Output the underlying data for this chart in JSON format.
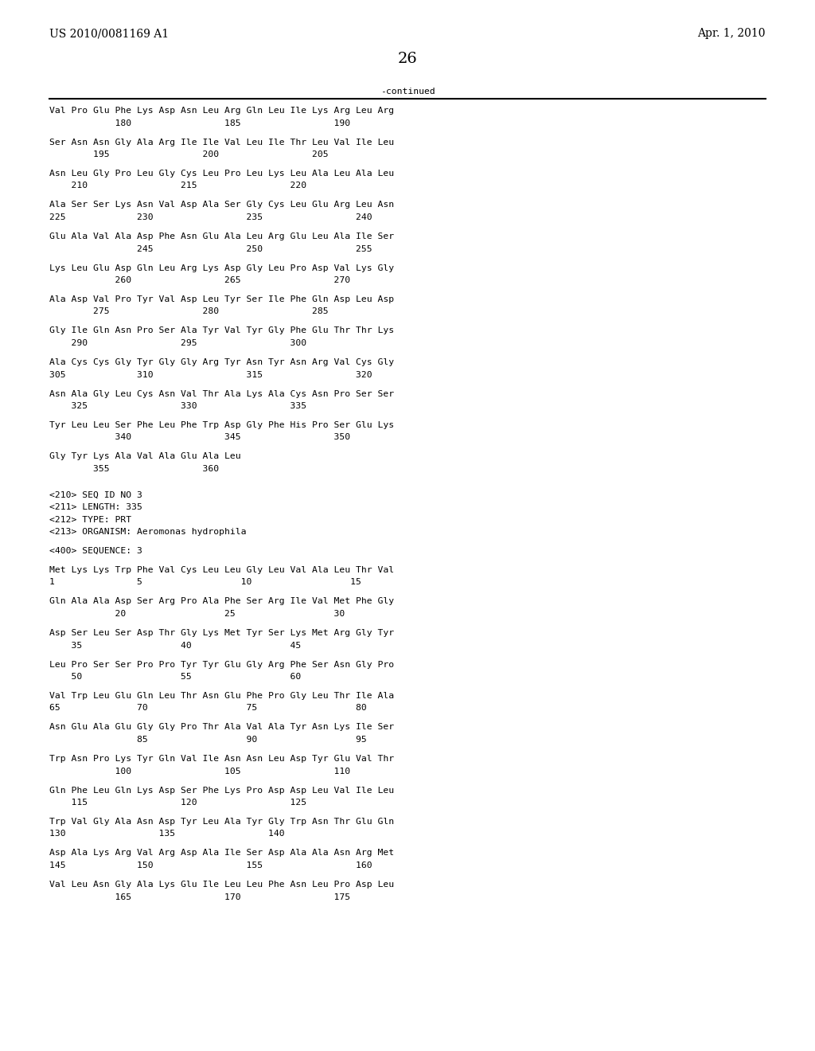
{
  "header_left": "US 2010/0081169 A1",
  "header_right": "Apr. 1, 2010",
  "page_number": "26",
  "continued_label": "-continued",
  "background_color": "#ffffff",
  "text_color": "#000000",
  "font_size": 8.2,
  "mono_font": "DejaVu Sans Mono",
  "header_font_size": 10,
  "page_num_font_size": 14,
  "lines": [
    "Val Pro Glu Phe Lys Asp Asn Leu Arg Gln Leu Ile Lys Arg Leu Arg",
    "            180                 185                 190",
    "",
    "Ser Asn Asn Gly Ala Arg Ile Ile Val Leu Ile Thr Leu Val Ile Leu",
    "        195                 200                 205",
    "",
    "Asn Leu Gly Pro Leu Gly Cys Leu Pro Leu Lys Leu Ala Leu Ala Leu",
    "    210                 215                 220",
    "",
    "Ala Ser Ser Lys Asn Val Asp Ala Ser Gly Cys Leu Glu Arg Leu Asn",
    "225             230                 235                 240",
    "",
    "Glu Ala Val Ala Asp Phe Asn Glu Ala Leu Arg Glu Leu Ala Ile Ser",
    "                245                 250                 255",
    "",
    "Lys Leu Glu Asp Gln Leu Arg Lys Asp Gly Leu Pro Asp Val Lys Gly",
    "            260                 265                 270",
    "",
    "Ala Asp Val Pro Tyr Val Asp Leu Tyr Ser Ile Phe Gln Asp Leu Asp",
    "        275                 280                 285",
    "",
    "Gly Ile Gln Asn Pro Ser Ala Tyr Val Tyr Gly Phe Glu Thr Thr Lys",
    "    290                 295                 300",
    "",
    "Ala Cys Cys Gly Tyr Gly Gly Arg Tyr Asn Tyr Asn Arg Val Cys Gly",
    "305             310                 315                 320",
    "",
    "Asn Ala Gly Leu Cys Asn Val Thr Ala Lys Ala Cys Asn Pro Ser Ser",
    "    325                 330                 335",
    "",
    "Tyr Leu Leu Ser Phe Leu Phe Trp Asp Gly Phe His Pro Ser Glu Lys",
    "            340                 345                 350",
    "",
    "Gly Tyr Lys Ala Val Ala Glu Ala Leu",
    "        355                 360",
    "",
    "",
    "<210> SEQ ID NO 3",
    "<211> LENGTH: 335",
    "<212> TYPE: PRT",
    "<213> ORGANISM: Aeromonas hydrophila",
    "",
    "<400> SEQUENCE: 3",
    "",
    "Met Lys Lys Trp Phe Val Cys Leu Leu Gly Leu Val Ala Leu Thr Val",
    "1               5                  10                  15",
    "",
    "Gln Ala Ala Asp Ser Arg Pro Ala Phe Ser Arg Ile Val Met Phe Gly",
    "            20                  25                  30",
    "",
    "Asp Ser Leu Ser Asp Thr Gly Lys Met Tyr Ser Lys Met Arg Gly Tyr",
    "    35                  40                  45",
    "",
    "Leu Pro Ser Ser Pro Pro Tyr Tyr Glu Gly Arg Phe Ser Asn Gly Pro",
    "    50                  55                  60",
    "",
    "Val Trp Leu Glu Gln Leu Thr Asn Glu Phe Pro Gly Leu Thr Ile Ala",
    "65              70                  75                  80",
    "",
    "Asn Glu Ala Glu Gly Gly Pro Thr Ala Val Ala Tyr Asn Lys Ile Ser",
    "                85                  90                  95",
    "",
    "Trp Asn Pro Lys Tyr Gln Val Ile Asn Asn Leu Asp Tyr Glu Val Thr",
    "            100                 105                 110",
    "",
    "Gln Phe Leu Gln Lys Asp Ser Phe Lys Pro Asp Asp Leu Val Ile Leu",
    "    115                 120                 125",
    "",
    "Trp Val Gly Ala Asn Asp Tyr Leu Ala Tyr Gly Trp Asn Thr Glu Gln",
    "130                 135                 140",
    "",
    "Asp Ala Lys Arg Val Arg Asp Ala Ile Ser Asp Ala Ala Asn Arg Met",
    "145             150                 155                 160",
    "",
    "Val Leu Asn Gly Ala Lys Glu Ile Leu Leu Phe Asn Leu Pro Asp Leu",
    "            165                 170                 175"
  ]
}
